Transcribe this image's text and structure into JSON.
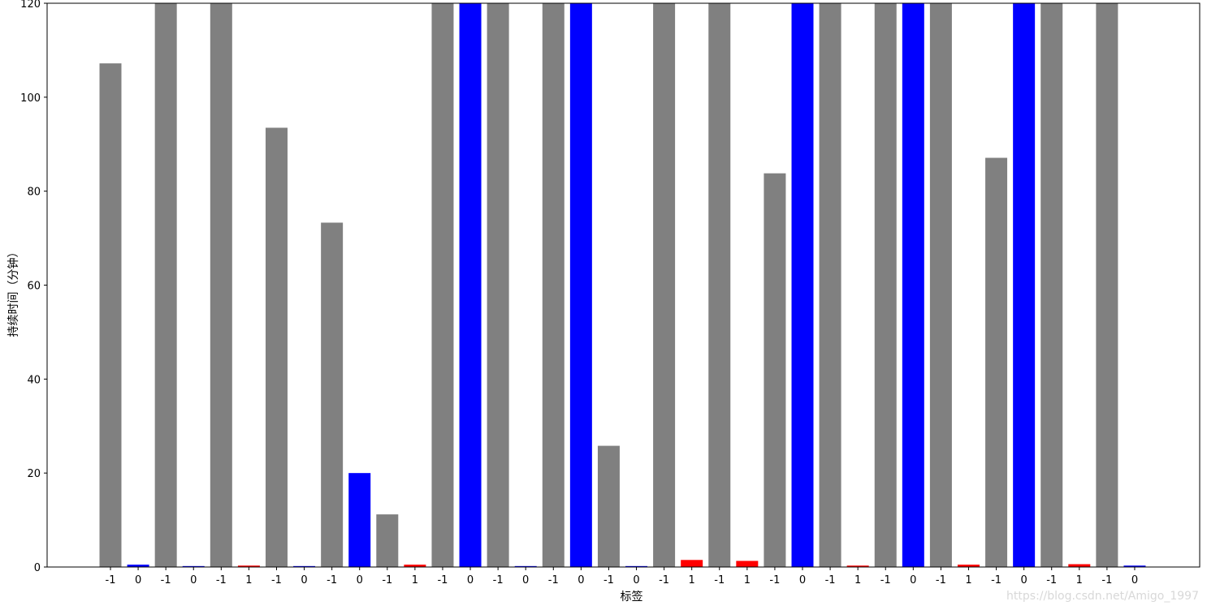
{
  "chart_data": {
    "type": "bar",
    "categories": [
      "-1",
      "0",
      "-1",
      "0",
      "-1",
      "1",
      "-1",
      "0",
      "-1",
      "0",
      "-1",
      "1",
      "-1",
      "0",
      "-1",
      "0",
      "-1",
      "0",
      "-1",
      "0",
      "-1",
      "1",
      "-1",
      "1",
      "-1",
      "0",
      "-1",
      "1",
      "-1",
      "0",
      "-1",
      "1",
      "-1",
      "0",
      "-1",
      "1",
      "-1",
      "0"
    ],
    "values": [
      107.2,
      0.5,
      120,
      0.2,
      120,
      0.3,
      93.5,
      0.2,
      73.3,
      20.0,
      11.2,
      0.5,
      120,
      120,
      120,
      0.2,
      120,
      120,
      25.8,
      0.2,
      120,
      1.5,
      120,
      1.3,
      83.8,
      120,
      120,
      0.3,
      120,
      120,
      120,
      0.5,
      87.1,
      120,
      120,
      0.6,
      120,
      0.3
    ],
    "bar_colors": [
      "#808080",
      "#0000ff",
      "#808080",
      "#0000ff",
      "#808080",
      "#ff0000",
      "#808080",
      "#0000ff",
      "#808080",
      "#0000ff",
      "#808080",
      "#ff0000",
      "#808080",
      "#0000ff",
      "#808080",
      "#0000ff",
      "#808080",
      "#0000ff",
      "#808080",
      "#0000ff",
      "#808080",
      "#ff0000",
      "#808080",
      "#ff0000",
      "#808080",
      "#0000ff",
      "#808080",
      "#ff0000",
      "#808080",
      "#0000ff",
      "#808080",
      "#ff0000",
      "#808080",
      "#0000ff",
      "#808080",
      "#ff0000",
      "#808080",
      "#0000ff"
    ],
    "xlabel": "标签",
    "ylabel": "持续时间（分钟）",
    "ylim": [
      0,
      120
    ],
    "yticks": [
      0,
      20,
      40,
      60,
      80,
      100,
      120
    ],
    "grid": false
  },
  "watermark": "https://blog.csdn.net/Amigo_1997"
}
